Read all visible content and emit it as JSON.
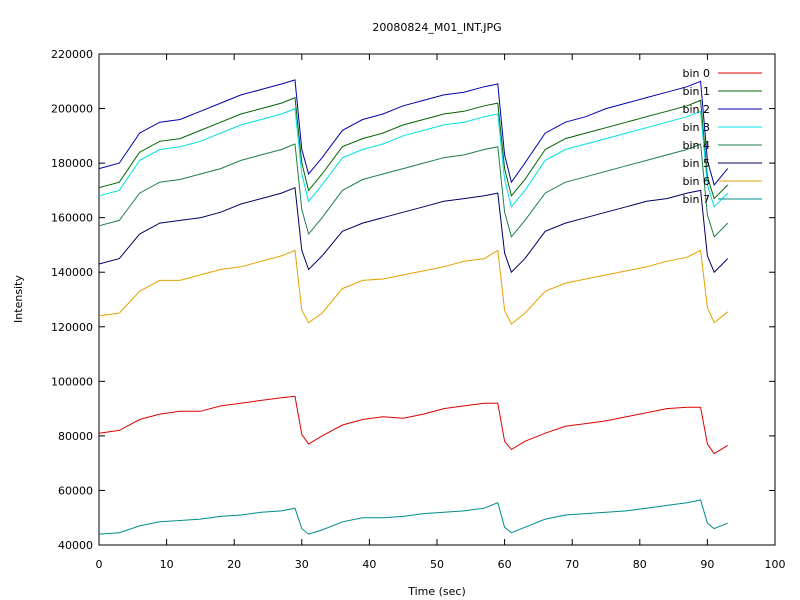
{
  "chart_data": {
    "type": "line",
    "title": "20080824_M01_INT.JPG",
    "xlabel": "Time (sec)",
    "ylabel": "Intensity",
    "xlim": [
      0,
      100
    ],
    "ylim": [
      40000,
      220000
    ],
    "x_ticks": [
      "0",
      "10",
      "20",
      "30",
      "40",
      "50",
      "60",
      "70",
      "80",
      "90",
      "100"
    ],
    "y_ticks": [
      "40000",
      "60000",
      "80000",
      "100000",
      "120000",
      "140000",
      "160000",
      "180000",
      "200000",
      "220000"
    ],
    "legend_position": "top-right",
    "grid": false,
    "x": [
      0,
      3,
      6,
      9,
      12,
      15,
      18,
      21,
      24,
      27,
      29,
      30,
      31,
      33,
      36,
      39,
      42,
      45,
      48,
      51,
      54,
      57,
      59,
      60,
      61,
      63,
      66,
      69,
      72,
      75,
      78,
      81,
      84,
      87,
      89,
      90,
      91,
      93
    ],
    "series": [
      {
        "name": "bin 0",
        "color": "#dd0000",
        "values": [
          81000,
          82000,
          86000,
          88000,
          89000,
          89000,
          91000,
          92000,
          93000,
          94000,
          94500,
          80500,
          77000,
          80000,
          84000,
          86000,
          87000,
          86500,
          88000,
          90000,
          91000,
          92000,
          92000,
          78000,
          75000,
          78000,
          81000,
          83500,
          84500,
          85500,
          87000,
          88500,
          90000,
          90500,
          90500,
          77000,
          73500,
          76500
        ]
      },
      {
        "name": "bin 1",
        "color": "#006400",
        "values": [
          171000,
          173000,
          184000,
          188000,
          189000,
          192000,
          195000,
          198000,
          200000,
          202000,
          204000,
          180000,
          170000,
          176000,
          186000,
          189000,
          191000,
          194000,
          196000,
          198000,
          199000,
          201000,
          202000,
          178000,
          168000,
          174000,
          185000,
          189000,
          191000,
          193000,
          195000,
          197000,
          199000,
          201000,
          203000,
          175000,
          167000,
          172000
        ]
      },
      {
        "name": "bin 2",
        "color": "#0000aa",
        "values": [
          178000,
          180000,
          191000,
          195000,
          196000,
          199000,
          202000,
          205000,
          207000,
          209000,
          210500,
          185000,
          176000,
          182000,
          192000,
          196000,
          198000,
          201000,
          203000,
          205000,
          206000,
          208000,
          209000,
          183000,
          173000,
          180000,
          191000,
          195000,
          197000,
          200000,
          202000,
          204000,
          206000,
          208000,
          210000,
          181000,
          172000,
          178000
        ]
      },
      {
        "name": "bin 3",
        "color": "#00e0e0",
        "values": [
          168000,
          170000,
          181000,
          185000,
          186000,
          188000,
          191000,
          194000,
          196000,
          198000,
          200000,
          176000,
          166000,
          172000,
          182000,
          185000,
          187000,
          190000,
          192000,
          194000,
          195000,
          197000,
          198000,
          174000,
          164000,
          170000,
          181000,
          185000,
          187000,
          189000,
          191000,
          193000,
          195000,
          197000,
          199000,
          172000,
          164000,
          169000
        ]
      },
      {
        "name": "bin 4",
        "color": "#1e7e4a",
        "values": [
          157000,
          159000,
          169000,
          173000,
          174000,
          176000,
          178000,
          181000,
          183000,
          185000,
          187000,
          163000,
          154000,
          160000,
          170000,
          174000,
          176000,
          178000,
          180000,
          182000,
          183000,
          185000,
          186000,
          162000,
          153000,
          159000,
          169000,
          173000,
          175000,
          177000,
          179000,
          181000,
          183000,
          185000,
          187000,
          161000,
          153000,
          158000
        ]
      },
      {
        "name": "bin 5",
        "color": "#000066",
        "values": [
          143000,
          145000,
          154000,
          158000,
          159000,
          160000,
          162000,
          165000,
          167000,
          169000,
          171000,
          148000,
          141000,
          146000,
          155000,
          158000,
          160000,
          162000,
          164000,
          166000,
          167000,
          168000,
          169000,
          147000,
          140000,
          145000,
          155000,
          158000,
          160000,
          162000,
          164000,
          166000,
          167000,
          169000,
          170000,
          146000,
          140000,
          145000
        ]
      },
      {
        "name": "bin 6",
        "color": "#e8a000",
        "values": [
          124000,
          125000,
          133000,
          137000,
          137000,
          139000,
          141000,
          142000,
          144000,
          146000,
          148000,
          126000,
          121500,
          125000,
          134000,
          137000,
          137500,
          139000,
          140500,
          142000,
          144000,
          145000,
          148000,
          126000,
          121000,
          125000,
          133000,
          136000,
          137500,
          139000,
          140500,
          142000,
          144000,
          145500,
          148000,
          127000,
          121500,
          125500
        ]
      },
      {
        "name": "bin 7",
        "color": "#008b8b",
        "values": [
          44000,
          44500,
          47000,
          48500,
          49000,
          49500,
          50500,
          51000,
          52000,
          52500,
          53500,
          46000,
          44000,
          45500,
          48500,
          50000,
          50000,
          50500,
          51500,
          52000,
          52500,
          53500,
          55500,
          46500,
          44500,
          46500,
          49500,
          51000,
          51500,
          52000,
          52500,
          53500,
          54500,
          55500,
          56500,
          48000,
          46000,
          48000
        ]
      }
    ]
  }
}
